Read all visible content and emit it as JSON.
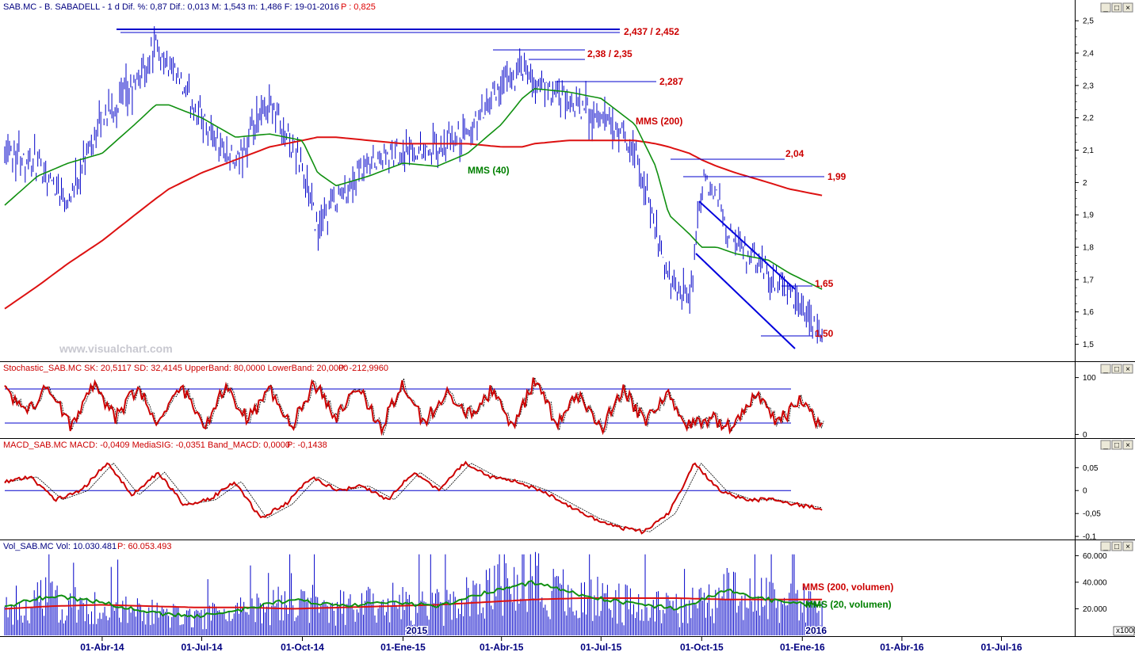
{
  "header": {
    "price": "SAB.MC - B. SABADELL - 1 d Dif. %: 0,87 Dif.: 0,013 M: 1,543 m: 1,486 F: 19-01-2016",
    "price_p": "P : 0,825",
    "stoch": "Stochastic_SAB.MC SK: 20,5117 SD: 32,4145 UpperBand: 80,0000 LowerBand: 20,0000",
    "stoch_p": "P: -212,9960",
    "macd": "MACD_SAB.MC MACD: -0,0409 MediaSIG: -0,0351 Band_MACD: 0,0000",
    "macd_p": "P: -0,1438",
    "vol": "Vol_SAB.MC Vol: 10.030.481",
    "vol_p": "P: 60.053.493"
  },
  "watermark": "www.visualchart.com",
  "window_buttons": [
    "_",
    "□",
    "×"
  ],
  "colors": {
    "price": "#0000c8",
    "mms40": "#109010",
    "mms200": "#dd1111",
    "label_red": "#cc0000",
    "label_green": "#008000",
    "axis_text": "#000080",
    "grid": "#000000"
  },
  "chart_data": [
    {
      "type": "line",
      "panel": "price",
      "ylim": [
        1.45,
        2.52
      ],
      "yticks": [
        "2,5",
        "2,4",
        "2,3",
        "2,2",
        "2,1",
        "2",
        "1,9",
        "1,8",
        "1,7",
        "1,6",
        "1,5"
      ],
      "ytick_values": [
        2.5,
        2.4,
        2.3,
        2.2,
        2.1,
        2.0,
        1.9,
        1.8,
        1.7,
        1.6,
        1.5
      ],
      "x": [
        "2014-01-02",
        "2014-02-01",
        "2014-03-01",
        "2014-04-01",
        "2014-05-01",
        "2014-05-20",
        "2014-06-01",
        "2014-07-01",
        "2014-08-01",
        "2014-09-01",
        "2014-10-01",
        "2014-10-15",
        "2014-11-01",
        "2014-12-01",
        "2015-01-01",
        "2015-02-01",
        "2015-03-01",
        "2015-04-01",
        "2015-04-20",
        "2015-05-01",
        "2015-06-01",
        "2015-07-01",
        "2015-08-01",
        "2015-08-20",
        "2015-09-01",
        "2015-09-20",
        "2015-10-01",
        "2015-10-15",
        "2015-11-01",
        "2015-12-01",
        "2015-12-20",
        "2016-01-19"
      ],
      "series": [
        {
          "name": "",
          "role": "price",
          "values": [
            2.12,
            2.05,
            1.95,
            2.2,
            2.3,
            2.42,
            2.35,
            2.2,
            2.05,
            2.25,
            2.05,
            1.85,
            1.95,
            2.05,
            2.1,
            2.1,
            2.15,
            2.3,
            2.35,
            2.3,
            2.25,
            2.2,
            2.1,
            1.85,
            1.7,
            1.62,
            2.0,
            1.95,
            1.8,
            1.72,
            1.65,
            1.52
          ]
        },
        {
          "name": "MMS (40)",
          "role": "mms40",
          "values": [
            1.93,
            2.02,
            2.06,
            2.09,
            2.18,
            2.24,
            2.24,
            2.2,
            2.14,
            2.15,
            2.13,
            2.03,
            1.99,
            2.02,
            2.06,
            2.05,
            2.09,
            2.18,
            2.26,
            2.29,
            2.28,
            2.26,
            2.18,
            2.05,
            1.9,
            1.84,
            1.8,
            1.8,
            1.78,
            1.76,
            1.72,
            1.67
          ]
        },
        {
          "name": "MMS (200)",
          "role": "mms200",
          "values": [
            1.61,
            1.68,
            1.75,
            1.82,
            1.9,
            1.95,
            1.98,
            2.03,
            2.07,
            2.11,
            2.13,
            2.14,
            2.14,
            2.13,
            2.12,
            2.12,
            2.12,
            2.11,
            2.11,
            2.12,
            2.13,
            2.13,
            2.13,
            2.12,
            2.11,
            2.09,
            2.07,
            2.05,
            2.03,
            2.0,
            1.98,
            1.96
          ]
        }
      ],
      "annotations": [
        {
          "text": "2,437 / 2,452",
          "color": "red"
        },
        {
          "text": "2,38 / 2,35",
          "color": "red"
        },
        {
          "text": "2,287",
          "color": "red"
        },
        {
          "text": "MMS (200)",
          "color": "red"
        },
        {
          "text": "2,04",
          "color": "red"
        },
        {
          "text": "1,99",
          "color": "red"
        },
        {
          "text": "MMS (40)",
          "color": "green"
        },
        {
          "text": "1,65",
          "color": "red"
        },
        {
          "text": "1,50",
          "color": "red"
        }
      ]
    },
    {
      "type": "line",
      "panel": "stochastic",
      "ylim": [
        -5,
        105
      ],
      "yticks": [
        "100",
        "0"
      ],
      "ytick_values": [
        100,
        0
      ],
      "bands": [
        80,
        20
      ],
      "series": [
        {
          "name": "",
          "role": "sk",
          "values": [
            80,
            40,
            85,
            15,
            90,
            30,
            80,
            20,
            85,
            10,
            85,
            25,
            80,
            15,
            90,
            30,
            85,
            10,
            90,
            20,
            80,
            35,
            75,
            15,
            95,
            20,
            70,
            10,
            80,
            20,
            70,
            15,
            30,
            10,
            75,
            20,
            60,
            10
          ]
        }
      ]
    },
    {
      "type": "line",
      "panel": "macd",
      "ylim": [
        -0.105,
        0.085
      ],
      "yticks": [
        "0,05",
        "0",
        "-0,05",
        "-0,1"
      ],
      "ytick_values": [
        0.05,
        0,
        -0.05,
        -0.1
      ],
      "series": [
        {
          "name": "",
          "role": "macd",
          "values": [
            0.02,
            0.03,
            -0.02,
            0.0,
            0.06,
            -0.01,
            0.04,
            -0.03,
            -0.02,
            0.02,
            -0.06,
            -0.03,
            0.03,
            0.0,
            0.01,
            -0.02,
            0.04,
            0.0,
            0.06,
            0.03,
            0.02,
            0.0,
            -0.03,
            -0.06,
            -0.08,
            -0.09,
            -0.05,
            0.06,
            0.0,
            -0.02,
            -0.02,
            -0.03,
            -0.04
          ]
        }
      ]
    },
    {
      "type": "bar",
      "panel": "volume",
      "ylim": [
        0,
        62000
      ],
      "yticks": [
        "60.000",
        "40.000",
        "20.000"
      ],
      "ytick_values": [
        60000,
        40000,
        20000
      ],
      "unit_label": "x1000",
      "series": [
        {
          "name": "MMS (200, volumen)",
          "role": "vol200",
          "values": [
            20000,
            22000,
            23000,
            22000,
            21000,
            21000,
            20000,
            21000,
            22000,
            23000,
            25000,
            27000,
            28000,
            28000,
            28000,
            27000,
            27000,
            27000
          ]
        },
        {
          "name": "MMS (20, volumen)",
          "role": "vol20",
          "values": [
            22000,
            30000,
            25000,
            17000,
            14000,
            20000,
            27000,
            22000,
            25000,
            22000,
            32000,
            40000,
            30000,
            24000,
            20000,
            34000,
            26000,
            22000
          ]
        }
      ]
    }
  ],
  "x_axis": {
    "ticks": [
      "01-Abr-14",
      "01-Jul-14",
      "01-Oct-14",
      "01-Ene-15",
      "01-Abr-15",
      "01-Jul-15",
      "01-Oct-15",
      "01-Ene-16",
      "01-Abr-16",
      "01-Jul-16"
    ],
    "tick_dates": [
      "2014-04-01",
      "2014-07-01",
      "2014-10-01",
      "2015-01-01",
      "2015-04-01",
      "2015-07-01",
      "2015-10-01",
      "2016-01-01",
      "2016-04-01",
      "2016-07-01"
    ],
    "year_labels": [
      "2015",
      "2016"
    ],
    "date_range": [
      "2014-01-02",
      "2016-09-06"
    ]
  }
}
